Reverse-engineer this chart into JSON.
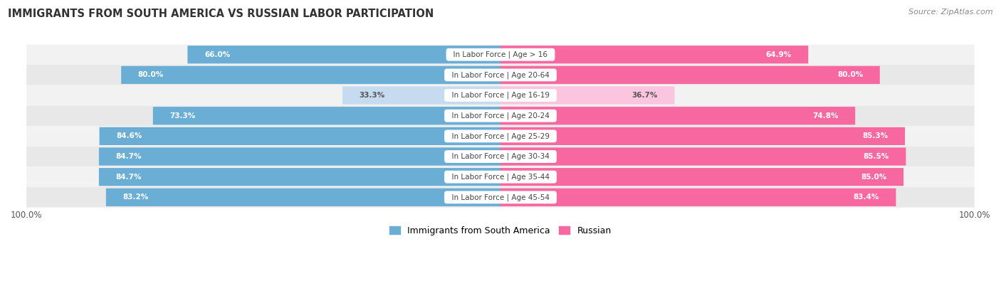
{
  "title": "IMMIGRANTS FROM SOUTH AMERICA VS RUSSIAN LABOR PARTICIPATION",
  "source": "Source: ZipAtlas.com",
  "categories": [
    "In Labor Force | Age > 16",
    "In Labor Force | Age 20-64",
    "In Labor Force | Age 16-19",
    "In Labor Force | Age 20-24",
    "In Labor Force | Age 25-29",
    "In Labor Force | Age 30-34",
    "In Labor Force | Age 35-44",
    "In Labor Force | Age 45-54"
  ],
  "south_america_values": [
    66.0,
    80.0,
    33.3,
    73.3,
    84.6,
    84.7,
    84.7,
    83.2
  ],
  "russian_values": [
    64.9,
    80.0,
    36.7,
    74.8,
    85.3,
    85.5,
    85.0,
    83.4
  ],
  "south_america_color_full": "#6aadd5",
  "south_america_color_light": "#c6dbef",
  "russian_color_full": "#f768a1",
  "russian_color_light": "#fcc5df",
  "row_bg_color_odd": "#f2f2f2",
  "row_bg_color_even": "#e8e8e8",
  "label_color_white": "#ffffff",
  "label_color_dark": "#555555",
  "label_box_color": "#ffffff",
  "light_threshold": 50.0,
  "max_value": 100.0,
  "figsize": [
    14.06,
    3.95
  ],
  "dpi": 100,
  "legend_labels": [
    "Immigrants from South America",
    "Russian"
  ]
}
